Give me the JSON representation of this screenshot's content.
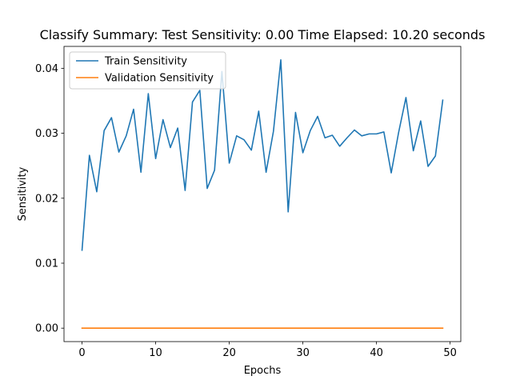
{
  "chart_data": {
    "type": "line",
    "title": "Classify Summary: Test Sensitivity: 0.00 Time Elapsed: 10.20 seconds",
    "xlabel": "Epochs",
    "ylabel": "Sensitivity",
    "xlim": [
      -2.45,
      51.45
    ],
    "ylim": [
      -0.00207,
      0.04337
    ],
    "xticks": [
      0,
      10,
      20,
      30,
      40,
      50
    ],
    "xtick_labels": [
      "0",
      "10",
      "20",
      "30",
      "40",
      "50"
    ],
    "yticks": [
      0.0,
      0.01,
      0.02,
      0.03,
      0.04
    ],
    "ytick_labels": [
      "0.00",
      "0.01",
      "0.02",
      "0.03",
      "0.04"
    ],
    "grid": false,
    "legend_position": "top-left",
    "x": [
      0,
      1,
      2,
      3,
      4,
      5,
      6,
      7,
      8,
      9,
      10,
      11,
      12,
      13,
      14,
      15,
      16,
      17,
      18,
      19,
      20,
      21,
      22,
      23,
      24,
      25,
      26,
      27,
      28,
      29,
      30,
      31,
      32,
      33,
      34,
      35,
      36,
      37,
      38,
      39,
      40,
      41,
      42,
      43,
      44,
      45,
      46,
      47,
      48,
      49
    ],
    "series": [
      {
        "name": "Train Sensitivity",
        "color": "#1f77b4",
        "values": [
          0.012,
          0.0266,
          0.021,
          0.0304,
          0.0324,
          0.0271,
          0.0296,
          0.0337,
          0.024,
          0.0361,
          0.0261,
          0.0321,
          0.0278,
          0.0308,
          0.0212,
          0.0348,
          0.0366,
          0.0215,
          0.0243,
          0.0395,
          0.0254,
          0.0296,
          0.029,
          0.0274,
          0.0334,
          0.024,
          0.0303,
          0.0413,
          0.0179,
          0.0332,
          0.027,
          0.0304,
          0.0326,
          0.0293,
          0.0297,
          0.028,
          0.0293,
          0.0305,
          0.0296,
          0.0299,
          0.0299,
          0.0302,
          0.0239,
          0.0301,
          0.0355,
          0.0273,
          0.0319,
          0.0249,
          0.0265,
          0.0351
        ]
      },
      {
        "name": "Validation Sensitivity",
        "color": "#ff7f0e",
        "values": [
          0,
          0,
          0,
          0,
          0,
          0,
          0,
          0,
          0,
          0,
          0,
          0,
          0,
          0,
          0,
          0,
          0,
          0,
          0,
          0,
          0,
          0,
          0,
          0,
          0,
          0,
          0,
          0,
          0,
          0,
          0,
          0,
          0,
          0,
          0,
          0,
          0,
          0,
          0,
          0,
          0,
          0,
          0,
          0,
          0,
          0,
          0,
          0,
          0,
          0
        ]
      }
    ]
  }
}
